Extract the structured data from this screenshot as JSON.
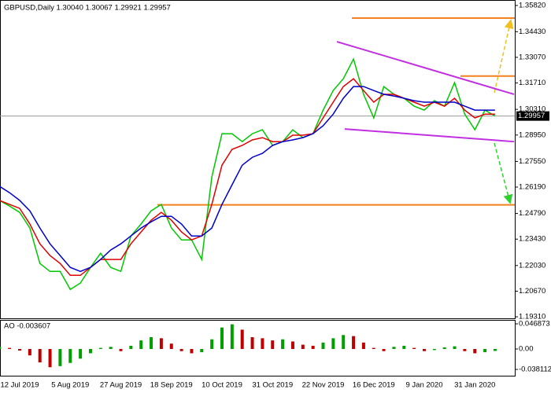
{
  "chart_data": [
    {
      "type": "line",
      "title": "GBPUSD,Daily  1.30040 1.30067 1.29921 1.29957",
      "categories": [
        null,
        null,
        "12 Jul 2019",
        null,
        null,
        null,
        null,
        "5 Aug 2019",
        null,
        null,
        null,
        null,
        "27 Aug 2019",
        null,
        null,
        null,
        null,
        "18 Sep 2019",
        null,
        null,
        null,
        null,
        "10 Oct 2019",
        null,
        null,
        null,
        null,
        "31 Oct 2019",
        null,
        null,
        null,
        null,
        "22 Nov 2019",
        null,
        null,
        null,
        null,
        "16 Dec 2019",
        null,
        null,
        null,
        null,
        "9 Jan 2020",
        null,
        null,
        null,
        null,
        "31 Jan 2020",
        null,
        null
      ],
      "series": [
        {
          "color": "#00c800",
          "values": [
            1.2548,
            1.2518,
            1.2485,
            1.2402,
            1.2214,
            1.2172,
            1.2172,
            1.2076,
            1.211,
            1.2193,
            1.2268,
            1.2193,
            1.2172,
            1.236,
            1.2423,
            1.2493,
            1.2527,
            1.2402,
            1.2339,
            1.2339,
            1.2235,
            1.2673,
            1.2902,
            1.2902,
            1.286,
            1.2902,
            1.2923,
            1.284,
            1.286,
            1.2923,
            1.2881,
            1.2902,
            1.3027,
            1.3131,
            1.3194,
            1.3298,
            1.3111,
            1.2986,
            1.3152,
            1.3111,
            1.309,
            1.3048,
            1.3027,
            1.3077,
            1.3048,
            1.3173,
            1.3006,
            1.2923,
            1.3027,
            1.2996
          ]
        },
        {
          "color": "#e00000",
          "values": [
            1.2548,
            1.2527,
            1.2506,
            1.2423,
            1.2318,
            1.2256,
            1.2214,
            1.2151,
            1.2151,
            1.2193,
            1.2235,
            1.2235,
            1.2235,
            1.2318,
            1.2381,
            1.2443,
            1.2485,
            1.2443,
            1.2381,
            1.2339,
            1.236,
            1.2527,
            1.2735,
            1.2819,
            1.284,
            1.2869,
            1.2881,
            1.286,
            1.286,
            1.2894,
            1.2894,
            1.2902,
            1.2986,
            1.3069,
            1.3152,
            1.3194,
            1.3131,
            1.3069,
            1.3111,
            1.3111,
            1.309,
            1.3069,
            1.3048,
            1.3069,
            1.3048,
            1.309,
            1.3027,
            1.2986,
            1.3006,
            1.3006
          ]
        },
        {
          "color": "#0000c8",
          "values": [
            1.2623,
            1.2589,
            1.2548,
            1.2493,
            1.2402,
            1.2318,
            1.2256,
            1.2193,
            1.2172,
            1.2193,
            1.2235,
            1.2285,
            1.2318,
            1.236,
            1.2402,
            1.2435,
            1.2464,
            1.2464,
            1.2423,
            1.236,
            1.236,
            1.2402,
            1.2527,
            1.2631,
            1.2735,
            1.2777,
            1.2798,
            1.284,
            1.286,
            1.2869,
            1.2881,
            1.2902,
            1.2944,
            1.3006,
            1.309,
            1.3152,
            1.3152,
            1.3131,
            1.3111,
            1.3102,
            1.309,
            1.3077,
            1.3069,
            1.3069,
            1.3069,
            1.3069,
            1.3048,
            1.3027,
            1.3027,
            1.3027
          ]
        }
      ],
      "ylim": [
        1.1923,
        1.3611
      ],
      "yticks": [
        {
          "value": 1.3582,
          "label": "1.35820"
        },
        {
          "value": 1.3443,
          "label": "1.34430"
        },
        {
          "value": 1.3307,
          "label": "1.33070"
        },
        {
          "value": 1.3171,
          "label": "1.31710"
        },
        {
          "value": 1.3031,
          "label": "1.30310"
        },
        {
          "value": 1.2895,
          "label": "1.28950"
        },
        {
          "value": 1.2755,
          "label": "1.27550"
        },
        {
          "value": 1.2619,
          "label": "1.26190"
        },
        {
          "value": 1.2479,
          "label": "1.24790"
        },
        {
          "value": 1.2343,
          "label": "1.23430"
        },
        {
          "value": 1.2203,
          "label": "1.22030"
        },
        {
          "value": 1.2067,
          "label": "1.20670"
        },
        {
          "value": 1.1931,
          "label": "1.19310"
        }
      ],
      "last_price": 1.29957,
      "levels": [
        1.3515,
        1.3208,
        1.2525
      ],
      "level_color": "#f4811f",
      "channel": [
        [
          1.339,
          1.3111
        ],
        [
          1.2927,
          1.286
        ]
      ],
      "channel_color": "#c030e0"
    },
    {
      "type": "bar",
      "title": "AO -0.003607",
      "values": [
        0.004,
        0.002,
        -0.003,
        -0.012,
        -0.025,
        -0.034,
        -0.032,
        -0.026,
        -0.018,
        -0.008,
        0.002,
        0.004,
        -0.004,
        0.006,
        0.016,
        0.022,
        0.02,
        0.01,
        -0.004,
        -0.008,
        -0.006,
        0.018,
        0.04,
        0.046,
        0.036,
        0.022,
        0.02,
        0.016,
        0.018,
        0.014,
        0.008,
        0.006,
        0.012,
        0.02,
        0.026,
        0.024,
        0.012,
        0.002,
        -0.004,
        0.004,
        0.006,
        0.002,
        -0.004,
        -0.002,
        0.003,
        0.005,
        -0.004,
        -0.008,
        -0.006,
        -0.003607
      ],
      "up_color": "#00a000",
      "down_color": "#c00000",
      "ylim": [
        -0.0498,
        0.0542
      ],
      "yticks": [
        0.046873,
        {
          "value": 0,
          "label": "0.00"
        },
        -0.038112
      ]
    }
  ]
}
